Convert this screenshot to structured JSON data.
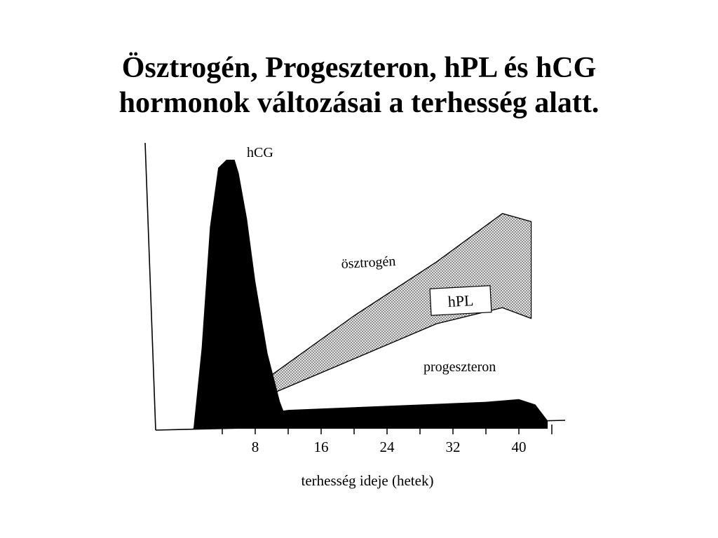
{
  "slide": {
    "title_line1": "Ösztrogén, Progeszteron, hPL és hCG",
    "title_line2": "hormonok változásai a terhesség alatt."
  },
  "chart_data": {
    "type": "area",
    "title": "",
    "xlabel": "terhesség ideje (hetek)",
    "ylabel": "",
    "x_ticks": [
      8,
      16,
      24,
      32,
      40
    ],
    "xlim": [
      0,
      44
    ],
    "ylim": [
      0,
      100
    ],
    "grid": false,
    "colors": {
      "hCG": "#000000",
      "progeszteron": "#000000",
      "ösztrogén": "#d6d6d6",
      "hPL": "#ffffff",
      "axis": "#000000"
    },
    "series": [
      {
        "name": "hCG",
        "label": "hCG",
        "x": [
          0.5,
          1.5,
          2.5,
          3.5,
          4.5,
          5.5,
          6.0,
          7.0,
          8.0,
          9.5,
          11.0,
          12.0
        ],
        "values": [
          0,
          30,
          75,
          97,
          100,
          100,
          95,
          78,
          55,
          28,
          10,
          2
        ]
      },
      {
        "name": "progeszteron",
        "label": "progeszteron",
        "x": [
          0.5,
          1.0,
          12.0,
          24.0,
          36.0,
          40.0,
          42.0,
          43.5
        ],
        "values": [
          0,
          2,
          7,
          8.5,
          10,
          11,
          9,
          3
        ]
      },
      {
        "name": "ösztrogén",
        "label": "ösztrogén",
        "x": [
          0.5,
          10,
          20,
          30,
          38,
          41.5
        ],
        "values": [
          0,
          20,
          42,
          62,
          80,
          77
        ]
      },
      {
        "name": "hPL",
        "label": "hPL",
        "x": [
          0.5,
          10,
          20,
          30,
          38,
          41.5
        ],
        "values": [
          0,
          13,
          26,
          39,
          45,
          41
        ]
      }
    ]
  }
}
